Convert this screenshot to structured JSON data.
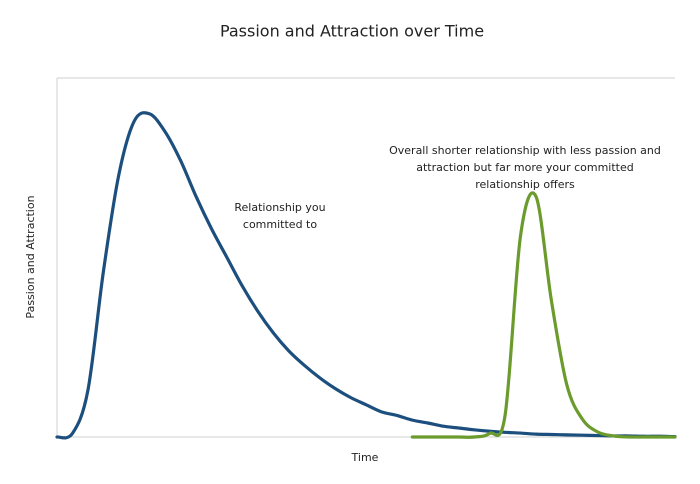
{
  "chart_data": {
    "type": "line",
    "title": "Passion and Attraction over Time",
    "x_label": "Time",
    "y_label": "Passion and Attraction",
    "xlim": [
      0,
      100
    ],
    "ylim": [
      0,
      100
    ],
    "x": [
      0,
      2.5,
      5,
      7.5,
      10,
      12.5,
      15,
      17.5,
      20,
      22.5,
      25,
      27.5,
      30,
      32.5,
      35,
      37.5,
      40,
      42.5,
      45,
      47.5,
      50,
      52.5,
      55,
      57.5,
      60,
      62.5,
      65,
      67.5,
      70,
      72.5,
      75,
      77.5,
      80,
      82.5,
      85,
      87.5,
      90,
      92.5,
      95,
      97.5,
      100
    ],
    "series": [
      {
        "color": "#1c4f7e",
        "values": [
          0,
          1,
          13,
          46,
          73,
          88,
          90,
          85,
          77,
          67,
          58,
          50,
          42,
          35,
          29,
          24,
          20,
          16.5,
          13.5,
          11,
          9,
          7,
          6,
          4.7,
          3.9,
          3,
          2.5,
          2,
          1.6,
          1.3,
          1.1,
          0.8,
          0.7,
          0.6,
          0.5,
          0.4,
          0.3,
          0.3,
          0.2,
          0.2,
          0.1
        ]
      },
      {
        "color": "#6b9b2c",
        "values": [
          null,
          null,
          null,
          null,
          null,
          null,
          null,
          null,
          null,
          null,
          null,
          null,
          null,
          null,
          null,
          null,
          null,
          null,
          null,
          null,
          null,
          null,
          null,
          0,
          0,
          0,
          0,
          0,
          1,
          6,
          56,
          67,
          38,
          14.5,
          5,
          1.4,
          0.3,
          0,
          0,
          0,
          0
        ]
      }
    ],
    "annotations": [
      [
        "Relationship you",
        "committed to"
      ],
      [
        "Overall shorter relationship with less passion and",
        "attraction but far more your committed",
        "relationship offers"
      ]
    ]
  }
}
